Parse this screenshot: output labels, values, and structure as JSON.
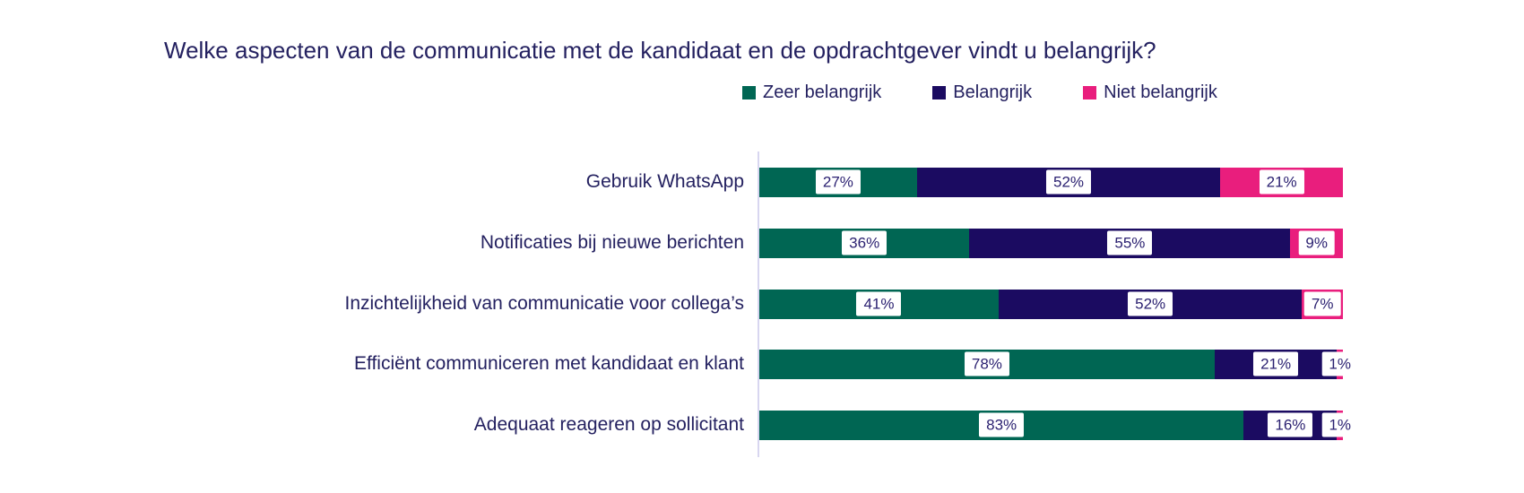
{
  "title": "Welke aspecten van de communicatie met de kandidaat en de opdrachtgever vindt u belangrijk?",
  "colors": {
    "zeer_belangrijk": "#006653",
    "belangrijk": "#1b0b61",
    "niet_belangrijk": "#e91e7d",
    "axis_line": "#d8d6f0",
    "text": "#242160"
  },
  "chart_data": {
    "type": "bar",
    "orientation": "horizontal",
    "stacked": true,
    "title": "Welke aspecten van de communicatie met de kandidaat en de opdrachtgever vindt u belangrijk?",
    "legend_position": "top",
    "value_label_format": "percent",
    "xlim": [
      0,
      100
    ],
    "grid": false,
    "categories": [
      "Gebruik WhatsApp",
      "Notificaties bij nieuwe berichten",
      "Inzichtelijkheid van communicatie voor collega’s",
      "Efficiënt communiceren met kandidaat en klant",
      "Adequaat reageren op sollicitant"
    ],
    "series": [
      {
        "name": "Zeer belangrijk",
        "color": "#006653",
        "values": [
          27,
          36,
          41,
          78,
          83
        ]
      },
      {
        "name": "Belangrijk",
        "color": "#1b0b61",
        "values": [
          52,
          55,
          52,
          21,
          16
        ]
      },
      {
        "name": "Niet belangrijk",
        "color": "#e91e7d",
        "values": [
          21,
          9,
          7,
          1,
          1
        ]
      }
    ]
  }
}
